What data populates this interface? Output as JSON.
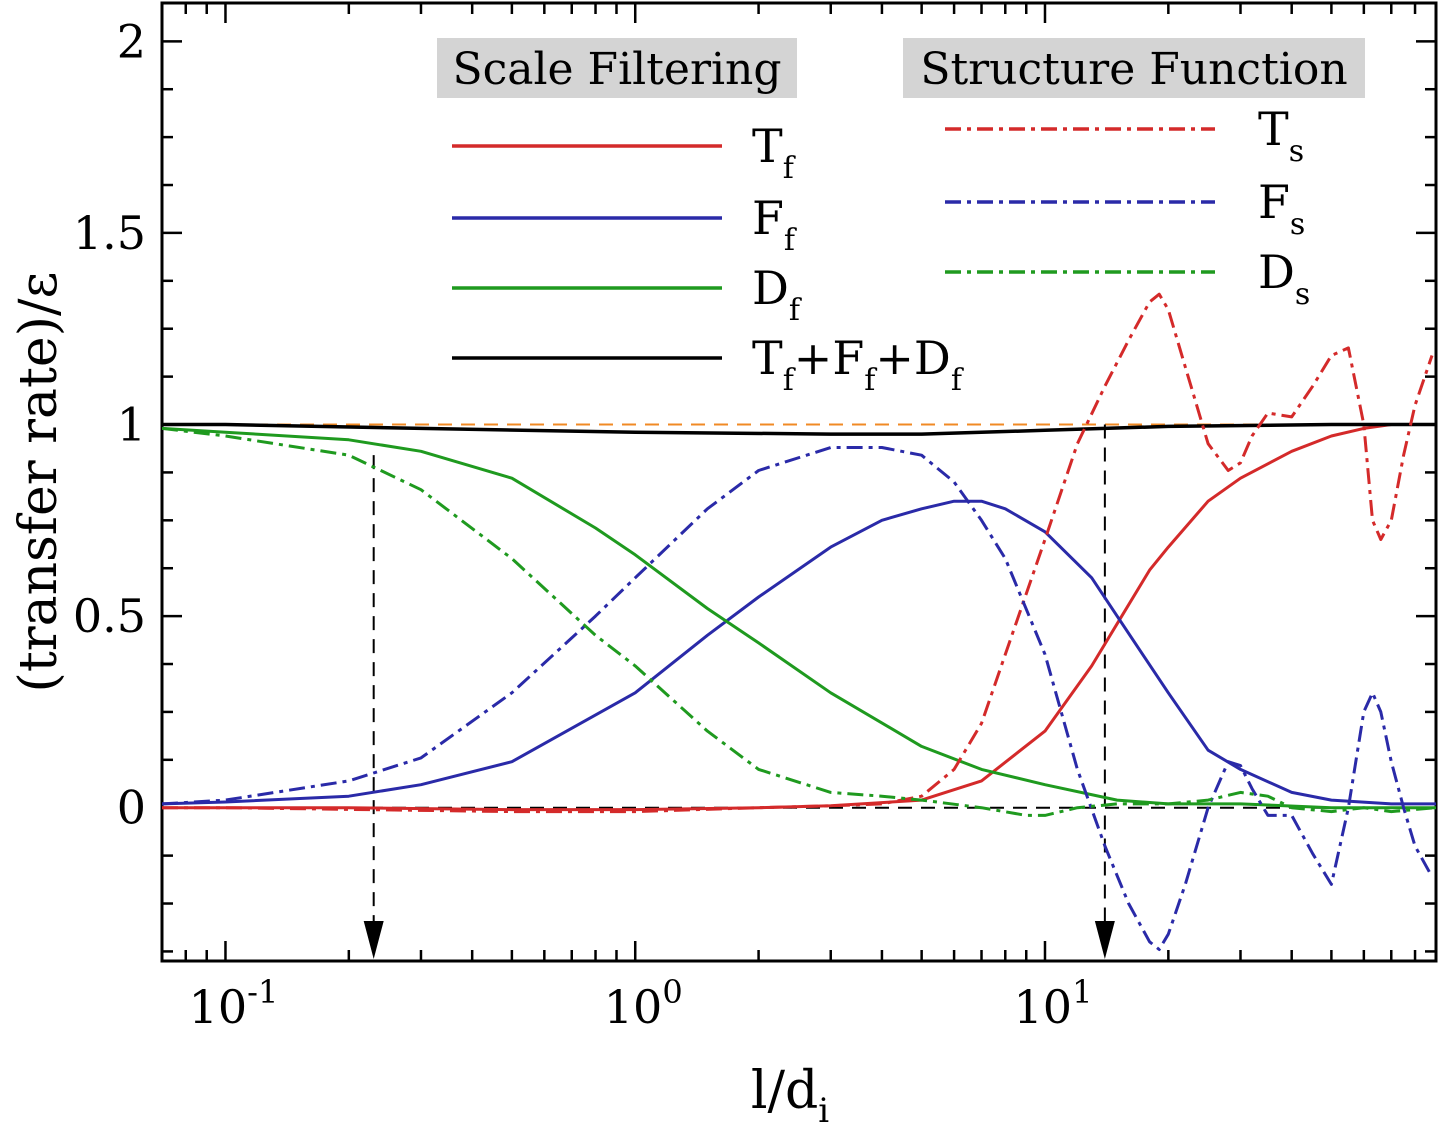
{
  "chart_data": {
    "type": "line",
    "title": "",
    "xlabel": "l/d",
    "xlabel_sub": "i",
    "ylabel": "(transfer rate)/ε",
    "xscale": "log",
    "xlim": [
      0.07,
      90
    ],
    "ylim": [
      -0.4,
      2.1
    ],
    "x_ticks": [
      {
        "value": 0.1,
        "base": "10",
        "exp": "-1"
      },
      {
        "value": 1,
        "base": "10",
        "exp": "0"
      },
      {
        "value": 10,
        "base": "10",
        "exp": "1"
      }
    ],
    "y_ticks": [
      {
        "value": 0,
        "label": "0"
      },
      {
        "value": 0.5,
        "label": "0.5"
      },
      {
        "value": 1,
        "label": "1"
      },
      {
        "value": 1.5,
        "label": "1.5"
      },
      {
        "value": 2,
        "label": "2"
      }
    ],
    "legend_groups": [
      {
        "name": "Scale Filtering",
        "position": "top-center"
      },
      {
        "name": "Structure Function",
        "position": "top-right"
      }
    ],
    "series": [
      {
        "name": "T",
        "sub": "f",
        "group": "Scale Filtering",
        "color": "#d42a2a",
        "style": "solid",
        "x": [
          0.07,
          0.1,
          0.2,
          0.5,
          1,
          2,
          3,
          5,
          7,
          10,
          13,
          15,
          18,
          20,
          25,
          30,
          40,
          50,
          60,
          70,
          90
        ],
        "y": [
          0,
          0,
          0,
          -0.005,
          -0.005,
          0,
          0.005,
          0.02,
          0.07,
          0.2,
          0.37,
          0.48,
          0.62,
          0.68,
          0.8,
          0.86,
          0.93,
          0.97,
          0.99,
          1.0,
          1.0
        ]
      },
      {
        "name": "F",
        "sub": "f",
        "group": "Scale Filtering",
        "color": "#2a2aa8",
        "style": "solid",
        "x": [
          0.07,
          0.1,
          0.2,
          0.3,
          0.5,
          1,
          1.5,
          2,
          3,
          4,
          5,
          6,
          7,
          8,
          10,
          13,
          15,
          20,
          25,
          30,
          40,
          50,
          70,
          90
        ],
        "y": [
          0.01,
          0.015,
          0.03,
          0.06,
          0.12,
          0.3,
          0.45,
          0.55,
          0.68,
          0.75,
          0.78,
          0.8,
          0.8,
          0.78,
          0.72,
          0.6,
          0.5,
          0.3,
          0.15,
          0.1,
          0.04,
          0.02,
          0.01,
          0.01
        ]
      },
      {
        "name": "D",
        "sub": "f",
        "group": "Scale Filtering",
        "color": "#1f9a1f",
        "style": "solid",
        "x": [
          0.07,
          0.1,
          0.2,
          0.3,
          0.5,
          0.8,
          1,
          1.5,
          2,
          3,
          5,
          7,
          10,
          15,
          20,
          30,
          50,
          90
        ],
        "y": [
          0.99,
          0.98,
          0.96,
          0.93,
          0.86,
          0.73,
          0.66,
          0.52,
          0.43,
          0.3,
          0.16,
          0.1,
          0.06,
          0.02,
          0.01,
          0.01,
          0,
          0
        ]
      },
      {
        "name": "T+F+D",
        "sub": "f",
        "group": "Scale Filtering",
        "color": "#000000",
        "style": "solid",
        "x": [
          0.07,
          0.1,
          0.3,
          1,
          3,
          5,
          10,
          20,
          50,
          90
        ],
        "y": [
          1.0,
          1.0,
          0.99,
          0.98,
          0.975,
          0.975,
          0.985,
          0.995,
          1.0,
          1.0
        ]
      },
      {
        "name": "T",
        "sub": "s",
        "group": "Structure Function",
        "color": "#d42a2a",
        "style": "dashdot",
        "x": [
          0.07,
          0.1,
          0.5,
          1,
          2,
          3,
          4,
          5,
          6,
          7,
          8,
          10,
          12,
          14,
          16,
          18,
          19,
          20,
          22,
          25,
          28,
          30,
          32,
          35,
          40,
          45,
          50,
          55,
          60,
          63,
          66,
          70,
          75,
          80,
          88
        ],
        "y": [
          0,
          0,
          -0.01,
          -0.01,
          0,
          0.005,
          0.01,
          0.03,
          0.1,
          0.22,
          0.4,
          0.7,
          0.95,
          1.1,
          1.22,
          1.32,
          1.34,
          1.3,
          1.15,
          0.95,
          0.88,
          0.9,
          0.97,
          1.03,
          1.02,
          1.1,
          1.18,
          1.2,
          1.0,
          0.75,
          0.7,
          0.75,
          0.92,
          1.05,
          1.18
        ]
      },
      {
        "name": "F",
        "sub": "s",
        "group": "Structure Function",
        "color": "#2a2aa8",
        "style": "dashdot",
        "x": [
          0.07,
          0.1,
          0.2,
          0.3,
          0.5,
          0.8,
          1,
          1.5,
          2,
          3,
          4,
          5,
          6,
          7,
          8,
          10,
          12,
          14,
          16,
          18,
          19,
          20,
          22,
          25,
          28,
          30,
          32,
          35,
          40,
          45,
          50,
          55,
          60,
          63,
          66,
          70,
          75,
          80,
          88
        ],
        "y": [
          0.01,
          0.02,
          0.07,
          0.13,
          0.3,
          0.5,
          0.6,
          0.78,
          0.88,
          0.94,
          0.94,
          0.92,
          0.85,
          0.75,
          0.65,
          0.4,
          0.1,
          -0.1,
          -0.25,
          -0.35,
          -0.37,
          -0.33,
          -0.2,
          0,
          0.12,
          0.11,
          0.05,
          -0.02,
          -0.02,
          -0.12,
          -0.2,
          0,
          0.25,
          0.3,
          0.25,
          0.12,
          0,
          -0.1,
          -0.18
        ]
      },
      {
        "name": "D",
        "sub": "s",
        "group": "Structure Function",
        "color": "#1f9a1f",
        "style": "dashdot",
        "x": [
          0.07,
          0.1,
          0.2,
          0.3,
          0.5,
          0.8,
          1,
          1.5,
          2,
          3,
          4,
          5,
          7,
          9,
          10,
          12,
          15,
          20,
          25,
          30,
          35,
          40,
          50,
          60,
          70,
          90
        ],
        "y": [
          0.99,
          0.97,
          0.92,
          0.83,
          0.65,
          0.45,
          0.37,
          0.2,
          0.1,
          0.04,
          0.03,
          0.02,
          0,
          -0.02,
          -0.02,
          0,
          0.01,
          0.01,
          0.02,
          0.04,
          0.03,
          0,
          -0.01,
          0,
          -0.01,
          0
        ]
      }
    ],
    "reference_lines": [
      {
        "name": "unity",
        "y": 1,
        "color": "#f08a24",
        "style": "dashed"
      },
      {
        "name": "zero",
        "y": 0,
        "color": "#000000",
        "style": "dashed"
      }
    ],
    "arrows": [
      {
        "x": 0.23,
        "y_from": 0.92,
        "y_to": -0.4
      },
      {
        "x": 14,
        "y_from": 1.0,
        "y_to": -0.4
      }
    ]
  }
}
